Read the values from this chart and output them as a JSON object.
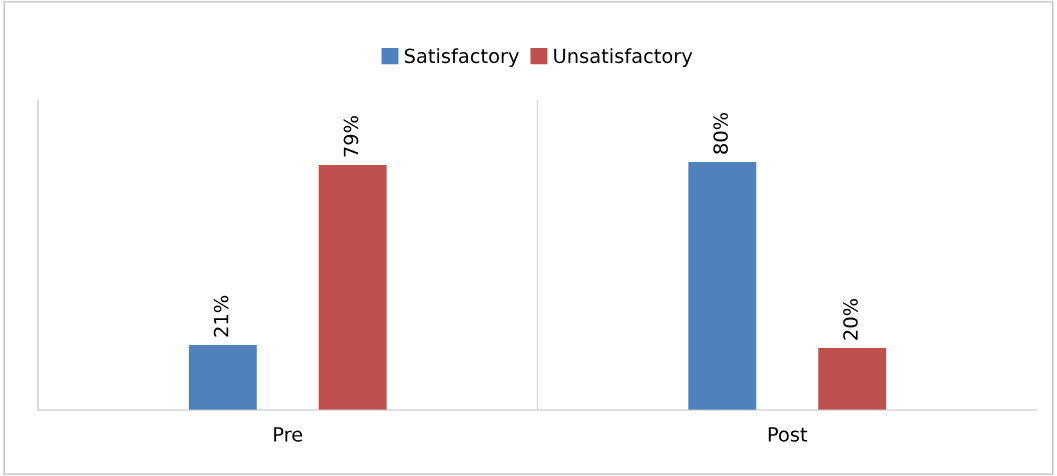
{
  "chart_data": {
    "type": "bar",
    "categories": [
      "Pre",
      "Post"
    ],
    "series": [
      {
        "name": "Satisfactory",
        "color": "#4f81bd",
        "values": [
          21,
          80
        ],
        "value_labels": [
          "21%",
          "80%"
        ]
      },
      {
        "name": "Unsatisfactory",
        "color": "#c0504d",
        "values": [
          79,
          20
        ],
        "value_labels": [
          "79%",
          "20%"
        ]
      }
    ],
    "ylim": [
      0,
      100
    ],
    "tick_labels": "x",
    "legend": "top",
    "grid": false
  }
}
